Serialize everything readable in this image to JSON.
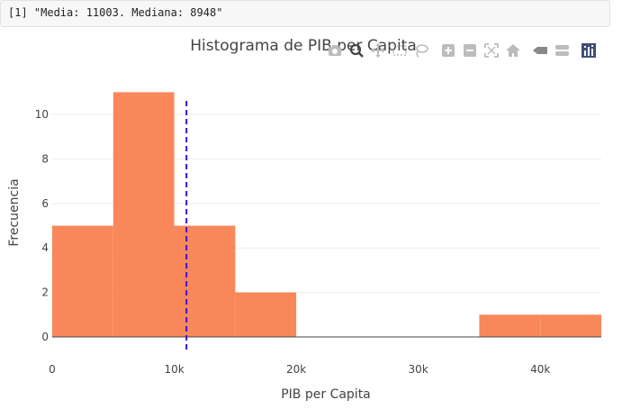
{
  "console": {
    "output": "[1] \"Media: 11003. Mediana: 8948\""
  },
  "modebar": {
    "buttons": [
      {
        "name": "camera-icon",
        "color": "#bcbcbc"
      },
      {
        "name": "zoom-icon",
        "color": "#444444"
      },
      {
        "name": "pan-icon",
        "color": "#bcbcbc"
      },
      {
        "name": "box-select-icon",
        "color": "#bcbcbc"
      },
      {
        "name": "lasso-icon",
        "color": "#bcbcbc"
      },
      {
        "name": "zoom-in-icon",
        "color": "#bcbcbc"
      },
      {
        "name": "zoom-out-icon",
        "color": "#bcbcbc"
      },
      {
        "name": "autoscale-icon",
        "color": "#bcbcbc"
      },
      {
        "name": "reset-axes-icon",
        "color": "#bcbcbc"
      },
      {
        "name": "spike-lines-icon",
        "color": "#888888"
      },
      {
        "name": "compare-hover-icon",
        "color": "#bcbcbc"
      },
      {
        "name": "plotly-logo-icon",
        "color": "#3f4f75"
      }
    ]
  },
  "chart_data": {
    "type": "bar",
    "title": "Histograma de PIB per Capita",
    "xlabel": "PIB per Capita",
    "ylabel": "Frecuencia",
    "bin_width": 5000,
    "bins": [
      {
        "start": 0,
        "end": 5000,
        "count": 5
      },
      {
        "start": 5000,
        "end": 10000,
        "count": 11
      },
      {
        "start": 10000,
        "end": 15000,
        "count": 5
      },
      {
        "start": 15000,
        "end": 20000,
        "count": 2
      },
      {
        "start": 20000,
        "end": 25000,
        "count": 0
      },
      {
        "start": 25000,
        "end": 30000,
        "count": 0
      },
      {
        "start": 30000,
        "end": 35000,
        "count": 0
      },
      {
        "start": 35000,
        "end": 40000,
        "count": 1
      },
      {
        "start": 40000,
        "end": 45000,
        "count": 1
      }
    ],
    "xlim": [
      0,
      45000
    ],
    "ylim": [
      0,
      11.5
    ],
    "x_ticks": [
      {
        "value": 0,
        "label": "0"
      },
      {
        "value": 10000,
        "label": "10k"
      },
      {
        "value": 20000,
        "label": "20k"
      },
      {
        "value": 30000,
        "label": "30k"
      },
      {
        "value": 40000,
        "label": "40k"
      }
    ],
    "y_ticks": [
      {
        "value": 0,
        "label": "0"
      },
      {
        "value": 2,
        "label": "2"
      },
      {
        "value": 4,
        "label": "4"
      },
      {
        "value": 6,
        "label": "6"
      },
      {
        "value": 8,
        "label": "8"
      },
      {
        "value": 10,
        "label": "10"
      }
    ],
    "mean_line": {
      "x": 11003,
      "color": "#3b10e6",
      "style": "dashed"
    },
    "bar_color": "#f8875a",
    "grid": true,
    "legend": "none"
  }
}
